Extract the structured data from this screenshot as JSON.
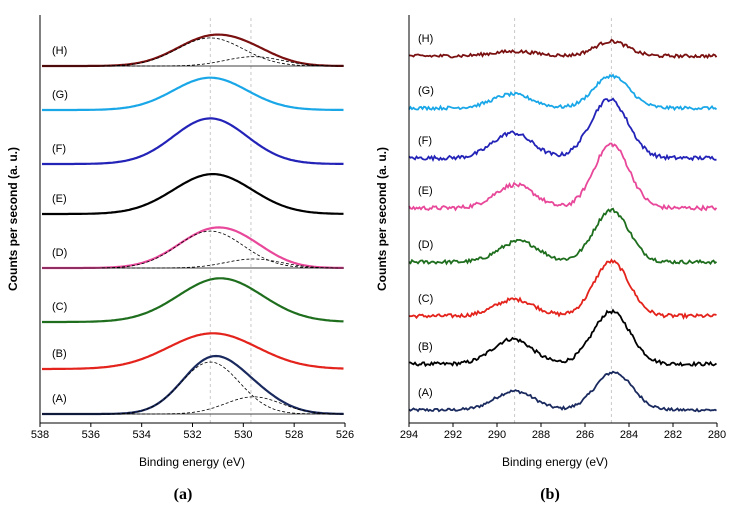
{
  "chart_data": [
    {
      "panel": "(a)",
      "type": "line",
      "xlabel": "Binding energy (eV)",
      "ylabel": "Counts per second (a. u.)",
      "xlim": [
        538,
        526
      ],
      "x_reversed": true,
      "xticks": [
        538,
        536,
        534,
        532,
        530,
        528,
        526
      ],
      "reference_lines": [
        531.3,
        529.7
      ],
      "series": [
        {
          "name": "(A)",
          "color": "#1a2a5e",
          "shape": {
            "peaks": [
              [
                531.3,
                1.0,
                1.15
              ],
              [
                529.6,
                0.33,
                1.1
              ]
            ]
          },
          "background": true,
          "components": [
            [
              531.3,
              1.0,
              1.15
            ],
            [
              529.6,
              0.33,
              1.1
            ]
          ]
        },
        {
          "name": "(B)",
          "color": "#e3231c",
          "shape": {
            "peaks": [
              [
                531.2,
                0.85,
                1.75
              ]
            ]
          }
        },
        {
          "name": "(C)",
          "color": "#1e6e1e",
          "shape": {
            "peaks": [
              [
                530.9,
                0.95,
                1.65
              ]
            ]
          }
        },
        {
          "name": "(D)",
          "color": "#e8489a",
          "shape": {
            "peaks": [
              [
                531.2,
                0.82,
                1.4
              ],
              [
                529.7,
                0.18,
                1.1
              ]
            ]
          },
          "background": true,
          "components": [
            [
              531.3,
              0.82,
              1.3
            ],
            [
              529.6,
              0.2,
              1.1
            ]
          ]
        },
        {
          "name": "(E)",
          "color": "#000000",
          "shape": {
            "peaks": [
              [
                531.2,
                0.95,
                1.55
              ]
            ]
          }
        },
        {
          "name": "(F)",
          "color": "#2323b8",
          "shape": {
            "peaks": [
              [
                531.3,
                0.95,
                1.45
              ]
            ]
          }
        },
        {
          "name": "(G)",
          "color": "#1aa7e8",
          "shape": {
            "peaks": [
              [
                531.3,
                0.95,
                1.45
              ]
            ]
          }
        },
        {
          "name": "(H)",
          "color": "#7a1010",
          "shape": {
            "peaks": [
              [
                531.3,
                0.78,
                1.35
              ],
              [
                529.6,
                0.25,
                1.1
              ]
            ]
          },
          "background": true,
          "components": [
            [
              531.3,
              0.78,
              1.3
            ],
            [
              529.6,
              0.26,
              1.1
            ]
          ]
        }
      ]
    },
    {
      "panel": "(b)",
      "type": "line",
      "xlabel": "Binding energy (eV)",
      "ylabel": "Counts per second (a. u.)",
      "xlim": [
        294,
        280
      ],
      "x_reversed": true,
      "xticks": [
        294,
        292,
        290,
        288,
        286,
        284,
        282,
        280
      ],
      "reference_lines": [
        289.2,
        284.8
      ],
      "series": [
        {
          "name": "(A)",
          "color": "#1a2a5e",
          "shape": {
            "peaks": [
              [
                289.2,
                0.45,
                0.9
              ],
              [
                284.7,
                0.9,
                0.85
              ]
            ]
          }
        },
        {
          "name": "(B)",
          "color": "#000000",
          "shape": {
            "peaks": [
              [
                289.3,
                0.5,
                0.9
              ],
              [
                284.8,
                1.05,
                0.85
              ]
            ]
          }
        },
        {
          "name": "(C)",
          "color": "#e3231c",
          "shape": {
            "peaks": [
              [
                289.2,
                0.32,
                0.9
              ],
              [
                284.8,
                1.05,
                0.8
              ]
            ]
          }
        },
        {
          "name": "(D)",
          "color": "#1e6e1e",
          "shape": {
            "peaks": [
              [
                289.0,
                0.4,
                0.9
              ],
              [
                284.8,
                1.0,
                0.8
              ]
            ]
          }
        },
        {
          "name": "(E)",
          "color": "#e8489a",
          "shape": {
            "peaks": [
              [
                289.2,
                0.4,
                0.9
              ],
              [
                284.8,
                1.1,
                0.8
              ]
            ]
          }
        },
        {
          "name": "(F)",
          "color": "#2323b8",
          "shape": {
            "peaks": [
              [
                289.3,
                0.45,
                0.9
              ],
              [
                284.9,
                1.05,
                0.85
              ]
            ]
          }
        },
        {
          "name": "(G)",
          "color": "#1aa7e8",
          "shape": {
            "peaks": [
              [
                289.3,
                0.3,
                0.9
              ],
              [
                284.8,
                0.7,
                0.8
              ]
            ]
          }
        },
        {
          "name": "(H)",
          "color": "#7a1010",
          "shape": {
            "peaks": [
              [
                289.2,
                0.1,
                1.0
              ],
              [
                284.8,
                0.32,
                0.75
              ]
            ]
          }
        }
      ]
    }
  ]
}
